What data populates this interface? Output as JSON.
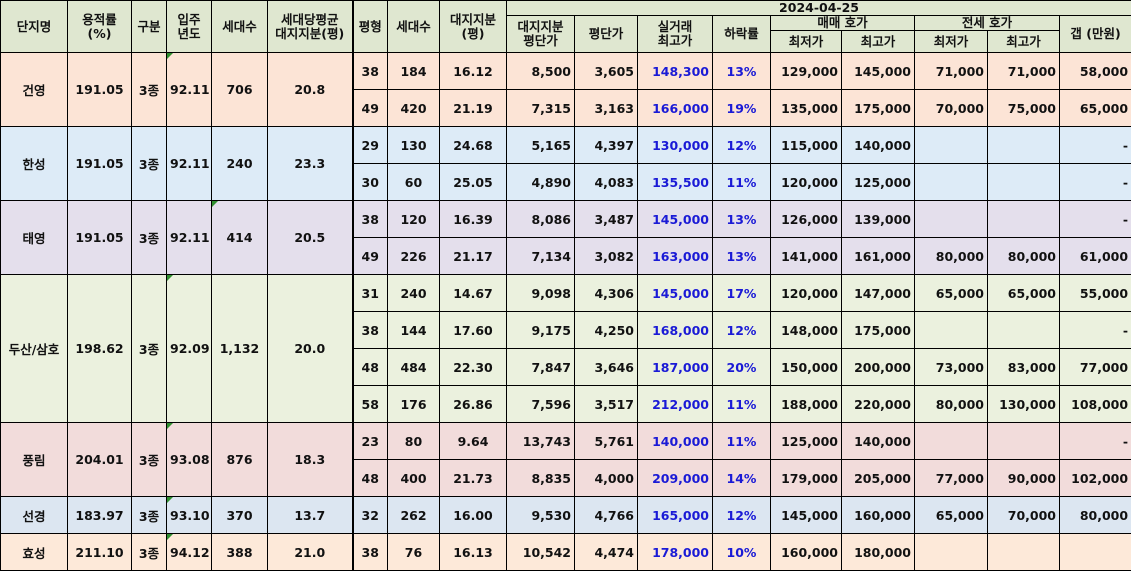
{
  "headers": {
    "complex": "단지명",
    "far_line1": "용적률",
    "far_line2": "(%)",
    "zone": "구분",
    "year_line1": "입주",
    "year_line2": "년도",
    "households": "세대수",
    "avg_land_line1": "세대당평균",
    "avg_land_line2": "대지지분(평)",
    "pyeong": "평형",
    "unit_households": "세대수",
    "land_line1": "대지지분",
    "land_line2": "(평)",
    "date": "2024-04-25",
    "land_price_line1": "대지지분",
    "land_price_line2": "평단가",
    "price_per_pyeong": "평단가",
    "deal_line1": "실거래",
    "deal_line2": "최고가",
    "drop_rate": "하락률",
    "sale_group": "매매 호가",
    "sale_min": "최저가",
    "sale_max": "최고가",
    "jeonse_group": "전세 호가",
    "jeonse_min": "최저가",
    "jeonse_max": "최고가",
    "gap": "갭 (만원)"
  },
  "groups": [
    {
      "name": "건영",
      "far": "191.05",
      "zone": "3종",
      "year": "92.11",
      "households": "706",
      "avg_land": "20.8",
      "rows": [
        {
          "pyeong": "38",
          "hh": "184",
          "land": "16.12",
          "land_price": "8,500",
          "ppy": "3,605",
          "deal_max": "148,300",
          "drop": "13%",
          "sale_min": "129,000",
          "sale_max": "145,000",
          "jeonse_min": "71,000",
          "jeonse_max": "71,000",
          "gap": "58,000"
        },
        {
          "pyeong": "49",
          "hh": "420",
          "land": "21.19",
          "land_price": "7,315",
          "ppy": "3,163",
          "deal_max": "166,000",
          "drop": "19%",
          "sale_min": "135,000",
          "sale_max": "175,000",
          "jeonse_min": "70,000",
          "jeonse_max": "75,000",
          "gap": "65,000"
        }
      ]
    },
    {
      "name": "한성",
      "far": "191.05",
      "zone": "3종",
      "year": "92.11",
      "households": "240",
      "avg_land": "23.3",
      "rows": [
        {
          "pyeong": "29",
          "hh": "130",
          "land": "24.68",
          "land_price": "5,165",
          "ppy": "4,397",
          "deal_max": "130,000",
          "drop": "12%",
          "sale_min": "115,000",
          "sale_max": "140,000",
          "jeonse_min": "",
          "jeonse_max": "",
          "gap": "-"
        },
        {
          "pyeong": "30",
          "hh": "60",
          "land": "25.05",
          "land_price": "4,890",
          "ppy": "4,083",
          "deal_max": "135,500",
          "drop": "11%",
          "sale_min": "120,000",
          "sale_max": "125,000",
          "jeonse_min": "",
          "jeonse_max": "",
          "gap": "-"
        }
      ]
    },
    {
      "name": "태영",
      "far": "191.05",
      "zone": "3종",
      "year": "92.11",
      "households": "414",
      "avg_land": "20.5",
      "rows": [
        {
          "pyeong": "38",
          "hh": "120",
          "land": "16.39",
          "land_price": "8,086",
          "ppy": "3,487",
          "deal_max": "145,000",
          "drop": "13%",
          "sale_min": "126,000",
          "sale_max": "139,000",
          "jeonse_min": "",
          "jeonse_max": "",
          "gap": "-"
        },
        {
          "pyeong": "49",
          "hh": "226",
          "land": "21.17",
          "land_price": "7,134",
          "ppy": "3,082",
          "deal_max": "163,000",
          "drop": "13%",
          "sale_min": "141,000",
          "sale_max": "161,000",
          "jeonse_min": "80,000",
          "jeonse_max": "80,000",
          "gap": "61,000"
        }
      ]
    },
    {
      "name": "두산/삼호",
      "far": "198.62",
      "zone": "3종",
      "year": "92.09",
      "households": "1,132",
      "avg_land": "20.0",
      "rows": [
        {
          "pyeong": "31",
          "hh": "240",
          "land": "14.67",
          "land_price": "9,098",
          "ppy": "4,306",
          "deal_max": "145,000",
          "drop": "17%",
          "sale_min": "120,000",
          "sale_max": "147,000",
          "jeonse_min": "65,000",
          "jeonse_max": "65,000",
          "gap": "55,000"
        },
        {
          "pyeong": "38",
          "hh": "144",
          "land": "17.60",
          "land_price": "9,175",
          "ppy": "4,250",
          "deal_max": "168,000",
          "drop": "12%",
          "sale_min": "148,000",
          "sale_max": "175,000",
          "jeonse_min": "",
          "jeonse_max": "",
          "gap": "-"
        },
        {
          "pyeong": "48",
          "hh": "484",
          "land": "22.30",
          "land_price": "7,847",
          "ppy": "3,646",
          "deal_max": "187,000",
          "drop": "20%",
          "sale_min": "150,000",
          "sale_max": "200,000",
          "jeonse_min": "73,000",
          "jeonse_max": "83,000",
          "gap": "77,000"
        },
        {
          "pyeong": "58",
          "hh": "176",
          "land": "26.86",
          "land_price": "7,596",
          "ppy": "3,517",
          "deal_max": "212,000",
          "drop": "11%",
          "sale_min": "188,000",
          "sale_max": "220,000",
          "jeonse_min": "80,000",
          "jeonse_max": "130,000",
          "gap": "108,000"
        }
      ]
    },
    {
      "name": "풍림",
      "far": "204.01",
      "zone": "3종",
      "year": "93.08",
      "households": "876",
      "avg_land": "18.3",
      "rows": [
        {
          "pyeong": "23",
          "hh": "80",
          "land": "9.64",
          "land_price": "13,743",
          "ppy": "5,761",
          "deal_max": "140,000",
          "drop": "11%",
          "sale_min": "125,000",
          "sale_max": "140,000",
          "jeonse_min": "",
          "jeonse_max": "",
          "gap": "-"
        },
        {
          "pyeong": "48",
          "hh": "400",
          "land": "21.73",
          "land_price": "8,835",
          "ppy": "4,000",
          "deal_max": "209,000",
          "drop": "14%",
          "sale_min": "179,000",
          "sale_max": "205,000",
          "jeonse_min": "77,000",
          "jeonse_max": "90,000",
          "gap": "102,000"
        }
      ]
    },
    {
      "name": "선경",
      "far": "183.97",
      "zone": "3종",
      "year": "93.10",
      "households": "370",
      "avg_land": "13.7",
      "rows": [
        {
          "pyeong": "32",
          "hh": "262",
          "land": "16.00",
          "land_price": "9,530",
          "ppy": "4,766",
          "deal_max": "165,000",
          "drop": "12%",
          "sale_min": "145,000",
          "sale_max": "160,000",
          "jeonse_min": "65,000",
          "jeonse_max": "70,000",
          "gap": "80,000"
        }
      ]
    },
    {
      "name": "효성",
      "far": "211.10",
      "zone": "3종",
      "year": "94.12",
      "households": "388",
      "avg_land": "21.0",
      "rows": [
        {
          "pyeong": "38",
          "hh": "76",
          "land": "16.13",
          "land_price": "10,542",
          "ppy": "4,474",
          "deal_max": "178,000",
          "drop": "10%",
          "sale_min": "160,000",
          "sale_max": "180,000",
          "jeonse_min": "",
          "jeonse_max": "",
          "gap": ""
        }
      ]
    }
  ]
}
